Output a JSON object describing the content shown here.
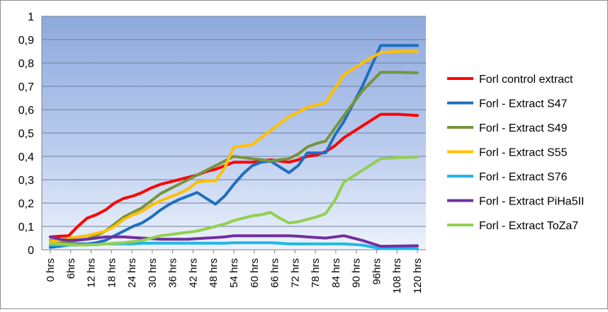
{
  "chart_data": {
    "type": "line",
    "title": "",
    "xlabel": "",
    "ylabel": "",
    "ylim": [
      0,
      1
    ],
    "yticks": [
      "0",
      "0,1",
      "0,2",
      "0,3",
      "0,4",
      "0,5",
      "0,6",
      "0,7",
      "0,8",
      "0,9",
      "1"
    ],
    "xtick_labels": [
      "0 hrs",
      "6hrs",
      "12 hrs",
      "18 hrs",
      "24 hrs",
      "30 hrs",
      "36 hrs",
      "42 hrs",
      "48 hrs",
      "54 hrs",
      "60 hrs",
      "66 hrs",
      "72 hrs",
      "78 hrs",
      "84 hrs",
      "90 hrs",
      "96hrs",
      "108 hrs",
      "120 hrs"
    ],
    "x": [
      0,
      3,
      6,
      9,
      12,
      15,
      18,
      21,
      24,
      27,
      30,
      33,
      36,
      39,
      42,
      45,
      48,
      51,
      54,
      57,
      60,
      63,
      66,
      69,
      72,
      75,
      78,
      81,
      84,
      87,
      90,
      93,
      96,
      102,
      108,
      114,
      120
    ],
    "grid": true,
    "legend_position": "right",
    "series": [
      {
        "name": "Forl control extract",
        "color": "#ff0000",
        "values": [
          0.055,
          0.058,
          0.06,
          0.1,
          0.135,
          0.15,
          0.17,
          0.2,
          0.22,
          0.23,
          0.245,
          0.265,
          0.28,
          0.29,
          0.3,
          0.31,
          0.32,
          0.335,
          0.345,
          0.36,
          0.375,
          0.375,
          0.375,
          0.38,
          0.385,
          0.38,
          0.375,
          0.385,
          0.4,
          0.405,
          0.42,
          0.445,
          0.48,
          0.53,
          0.58,
          0.58,
          0.575
        ]
      },
      {
        "name": "Forl - Extract S47",
        "color": "#1f6fbf",
        "values": [
          0.01,
          0.015,
          0.02,
          0.025,
          0.025,
          0.03,
          0.04,
          0.06,
          0.08,
          0.1,
          0.115,
          0.14,
          0.17,
          0.195,
          0.215,
          0.23,
          0.245,
          0.22,
          0.195,
          0.23,
          0.28,
          0.325,
          0.36,
          0.375,
          0.38,
          0.355,
          0.33,
          0.36,
          0.415,
          0.415,
          0.415,
          0.49,
          0.55,
          0.7,
          0.875,
          0.875,
          0.875
        ]
      },
      {
        "name": "Forl - Extract S49",
        "color": "#77933c",
        "values": [
          0.04,
          0.035,
          0.03,
          0.04,
          0.045,
          0.06,
          0.08,
          0.11,
          0.14,
          0.16,
          0.18,
          0.21,
          0.24,
          0.26,
          0.28,
          0.3,
          0.32,
          0.34,
          0.36,
          0.38,
          0.4,
          0.395,
          0.39,
          0.385,
          0.38,
          0.385,
          0.39,
          0.41,
          0.44,
          0.455,
          0.465,
          0.52,
          0.575,
          0.68,
          0.76,
          0.76,
          0.758
        ]
      },
      {
        "name": "Forl - Extract S55",
        "color": "#ffc000",
        "values": [
          0.035,
          0.04,
          0.05,
          0.055,
          0.06,
          0.07,
          0.08,
          0.1,
          0.13,
          0.15,
          0.165,
          0.19,
          0.21,
          0.225,
          0.24,
          0.26,
          0.29,
          0.295,
          0.295,
          0.35,
          0.44,
          0.445,
          0.45,
          0.48,
          0.51,
          0.54,
          0.57,
          0.59,
          0.61,
          0.62,
          0.63,
          0.69,
          0.75,
          0.8,
          0.845,
          0.85,
          0.85
        ]
      },
      {
        "name": "Forl - Extract S76",
        "color": "#1fb8e8",
        "values": [
          0.02,
          0.02,
          0.02,
          0.02,
          0.022,
          0.022,
          0.025,
          0.025,
          0.025,
          0.025,
          0.028,
          0.028,
          0.028,
          0.028,
          0.028,
          0.028,
          0.028,
          0.028,
          0.028,
          0.028,
          0.03,
          0.03,
          0.03,
          0.03,
          0.03,
          0.028,
          0.025,
          0.025,
          0.025,
          0.025,
          0.025,
          0.025,
          0.025,
          0.02,
          0.005,
          0.005,
          0.005
        ]
      },
      {
        "name": "Forl - Extract PiHa5II",
        "color": "#7030a0",
        "values": [
          0.055,
          0.045,
          0.04,
          0.042,
          0.045,
          0.05,
          0.055,
          0.055,
          0.055,
          0.052,
          0.05,
          0.048,
          0.045,
          0.045,
          0.045,
          0.045,
          0.048,
          0.05,
          0.052,
          0.055,
          0.06,
          0.06,
          0.06,
          0.06,
          0.06,
          0.06,
          0.06,
          0.058,
          0.055,
          0.052,
          0.05,
          0.055,
          0.06,
          0.04,
          0.015,
          0.016,
          0.017
        ]
      },
      {
        "name": "Forl - Extract ToZa7",
        "color": "#92d050",
        "values": [
          0.025,
          0.025,
          0.022,
          0.02,
          0.02,
          0.022,
          0.025,
          0.028,
          0.03,
          0.035,
          0.04,
          0.05,
          0.06,
          0.065,
          0.07,
          0.075,
          0.08,
          0.09,
          0.1,
          0.11,
          0.125,
          0.135,
          0.145,
          0.15,
          0.16,
          0.135,
          0.115,
          0.12,
          0.13,
          0.14,
          0.155,
          0.21,
          0.29,
          0.34,
          0.39,
          0.395,
          0.398
        ]
      }
    ]
  }
}
